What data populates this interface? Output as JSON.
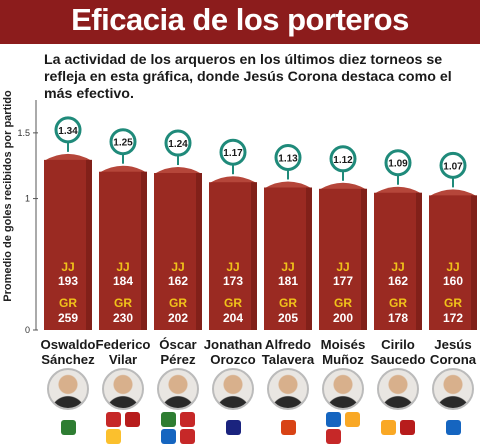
{
  "header": {
    "title": "Eficacia de los porteros",
    "subtitle": "La actividad de los arqueros en los últimos diez torneos se refleja en esta gráfica, donde Jesús Corona destaca como el más efectivo."
  },
  "colors": {
    "banner": "#8c1c1c",
    "bar_front": "#9a2a22",
    "bar_top": "#b5463a",
    "bar_side": "#6e1812",
    "badge": "#1f8a7a",
    "stat_label": "#f0c21a"
  },
  "chart_data": {
    "type": "bar",
    "ylabel": "Promedio de goles recibidos por partido",
    "ylim": [
      0,
      1.75
    ],
    "yticks": [
      "0",
      "1",
      "1.5"
    ],
    "categories": [
      "Oswaldo Sánchez",
      "Federico Vilar",
      "Óscar Pérez",
      "Jonathan Orozco",
      "Alfredo Talavera",
      "Moisés Muñoz",
      "Cirilo Saucedo",
      "Jesús Corona"
    ],
    "values": [
      1.34,
      1.25,
      1.24,
      1.17,
      1.13,
      1.12,
      1.09,
      1.07
    ],
    "value_labels": [
      "1.34",
      "1.25",
      "1.24",
      "1.17",
      "1.13",
      "1.12",
      "1.09",
      "1.07"
    ],
    "jj_label": "JJ",
    "gr_label": "GR",
    "jj": [
      "193",
      "184",
      "162",
      "173",
      "181",
      "177",
      "162",
      "160"
    ],
    "gr": [
      "259",
      "230",
      "202",
      "204",
      "205",
      "200",
      "178",
      "172"
    ]
  },
  "players": [
    {
      "first": "Oswaldo",
      "last": "Sánchez",
      "logos": [
        "#2e7d32"
      ]
    },
    {
      "first": "Federico",
      "last": "Vilar",
      "logos": [
        "#c62828",
        "#b71c1c",
        "#fbc02d"
      ]
    },
    {
      "first": "Óscar",
      "last": "Pérez",
      "logos": [
        "#2e7d32",
        "#c62828",
        "#1565c0",
        "#c62828"
      ]
    },
    {
      "first": "Jonathan",
      "last": "Orozco",
      "logos": [
        "#1a237e"
      ]
    },
    {
      "first": "Alfredo",
      "last": "Talavera",
      "logos": [
        "#d84315"
      ]
    },
    {
      "first": "Moisés",
      "last": "Muñoz",
      "logos": [
        "#1565c0",
        "#f9a825",
        "#c62828"
      ]
    },
    {
      "first": "Cirilo",
      "last": "Saucedo",
      "logos": [
        "#f9a825",
        "#b71c1c"
      ]
    },
    {
      "first": "Jesús",
      "last": "Corona",
      "logos": [
        "#1565c0"
      ]
    }
  ]
}
